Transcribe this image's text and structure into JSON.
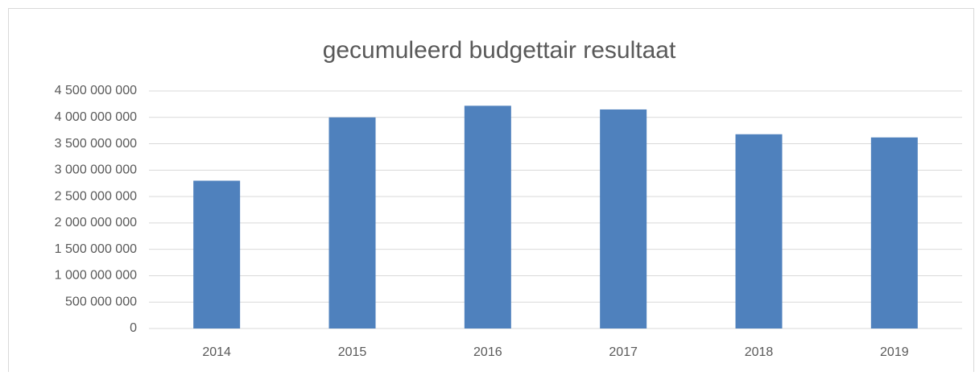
{
  "chart_data": {
    "type": "bar",
    "title": "gecumuleerd budgettair resultaat",
    "categories": [
      "2014",
      "2015",
      "2016",
      "2017",
      "2018",
      "2019"
    ],
    "values": [
      2800000000,
      4000000000,
      4220000000,
      4150000000,
      3680000000,
      3620000000
    ],
    "color": "#4f81bd",
    "ylim": [
      0,
      4500000000
    ],
    "yticks": [
      0,
      {
        "value": 500000000,
        "label": "500 000 000"
      },
      {
        "value": 1000000000,
        "label": "1 000 000 000"
      },
      {
        "value": 1500000000,
        "label": "1 500 000 000"
      },
      {
        "value": 2000000000,
        "label": "2 000 000 000"
      },
      {
        "value": 2500000000,
        "label": "2 500 000 000"
      },
      {
        "value": 3000000000,
        "label": "3 000 000 000"
      },
      {
        "value": 3500000000,
        "label": "3 500 000 000"
      },
      {
        "value": 4000000000,
        "label": "4 000 000 000"
      },
      {
        "value": 4500000000,
        "label": "4 500 000 000"
      }
    ],
    "grid": true
  }
}
